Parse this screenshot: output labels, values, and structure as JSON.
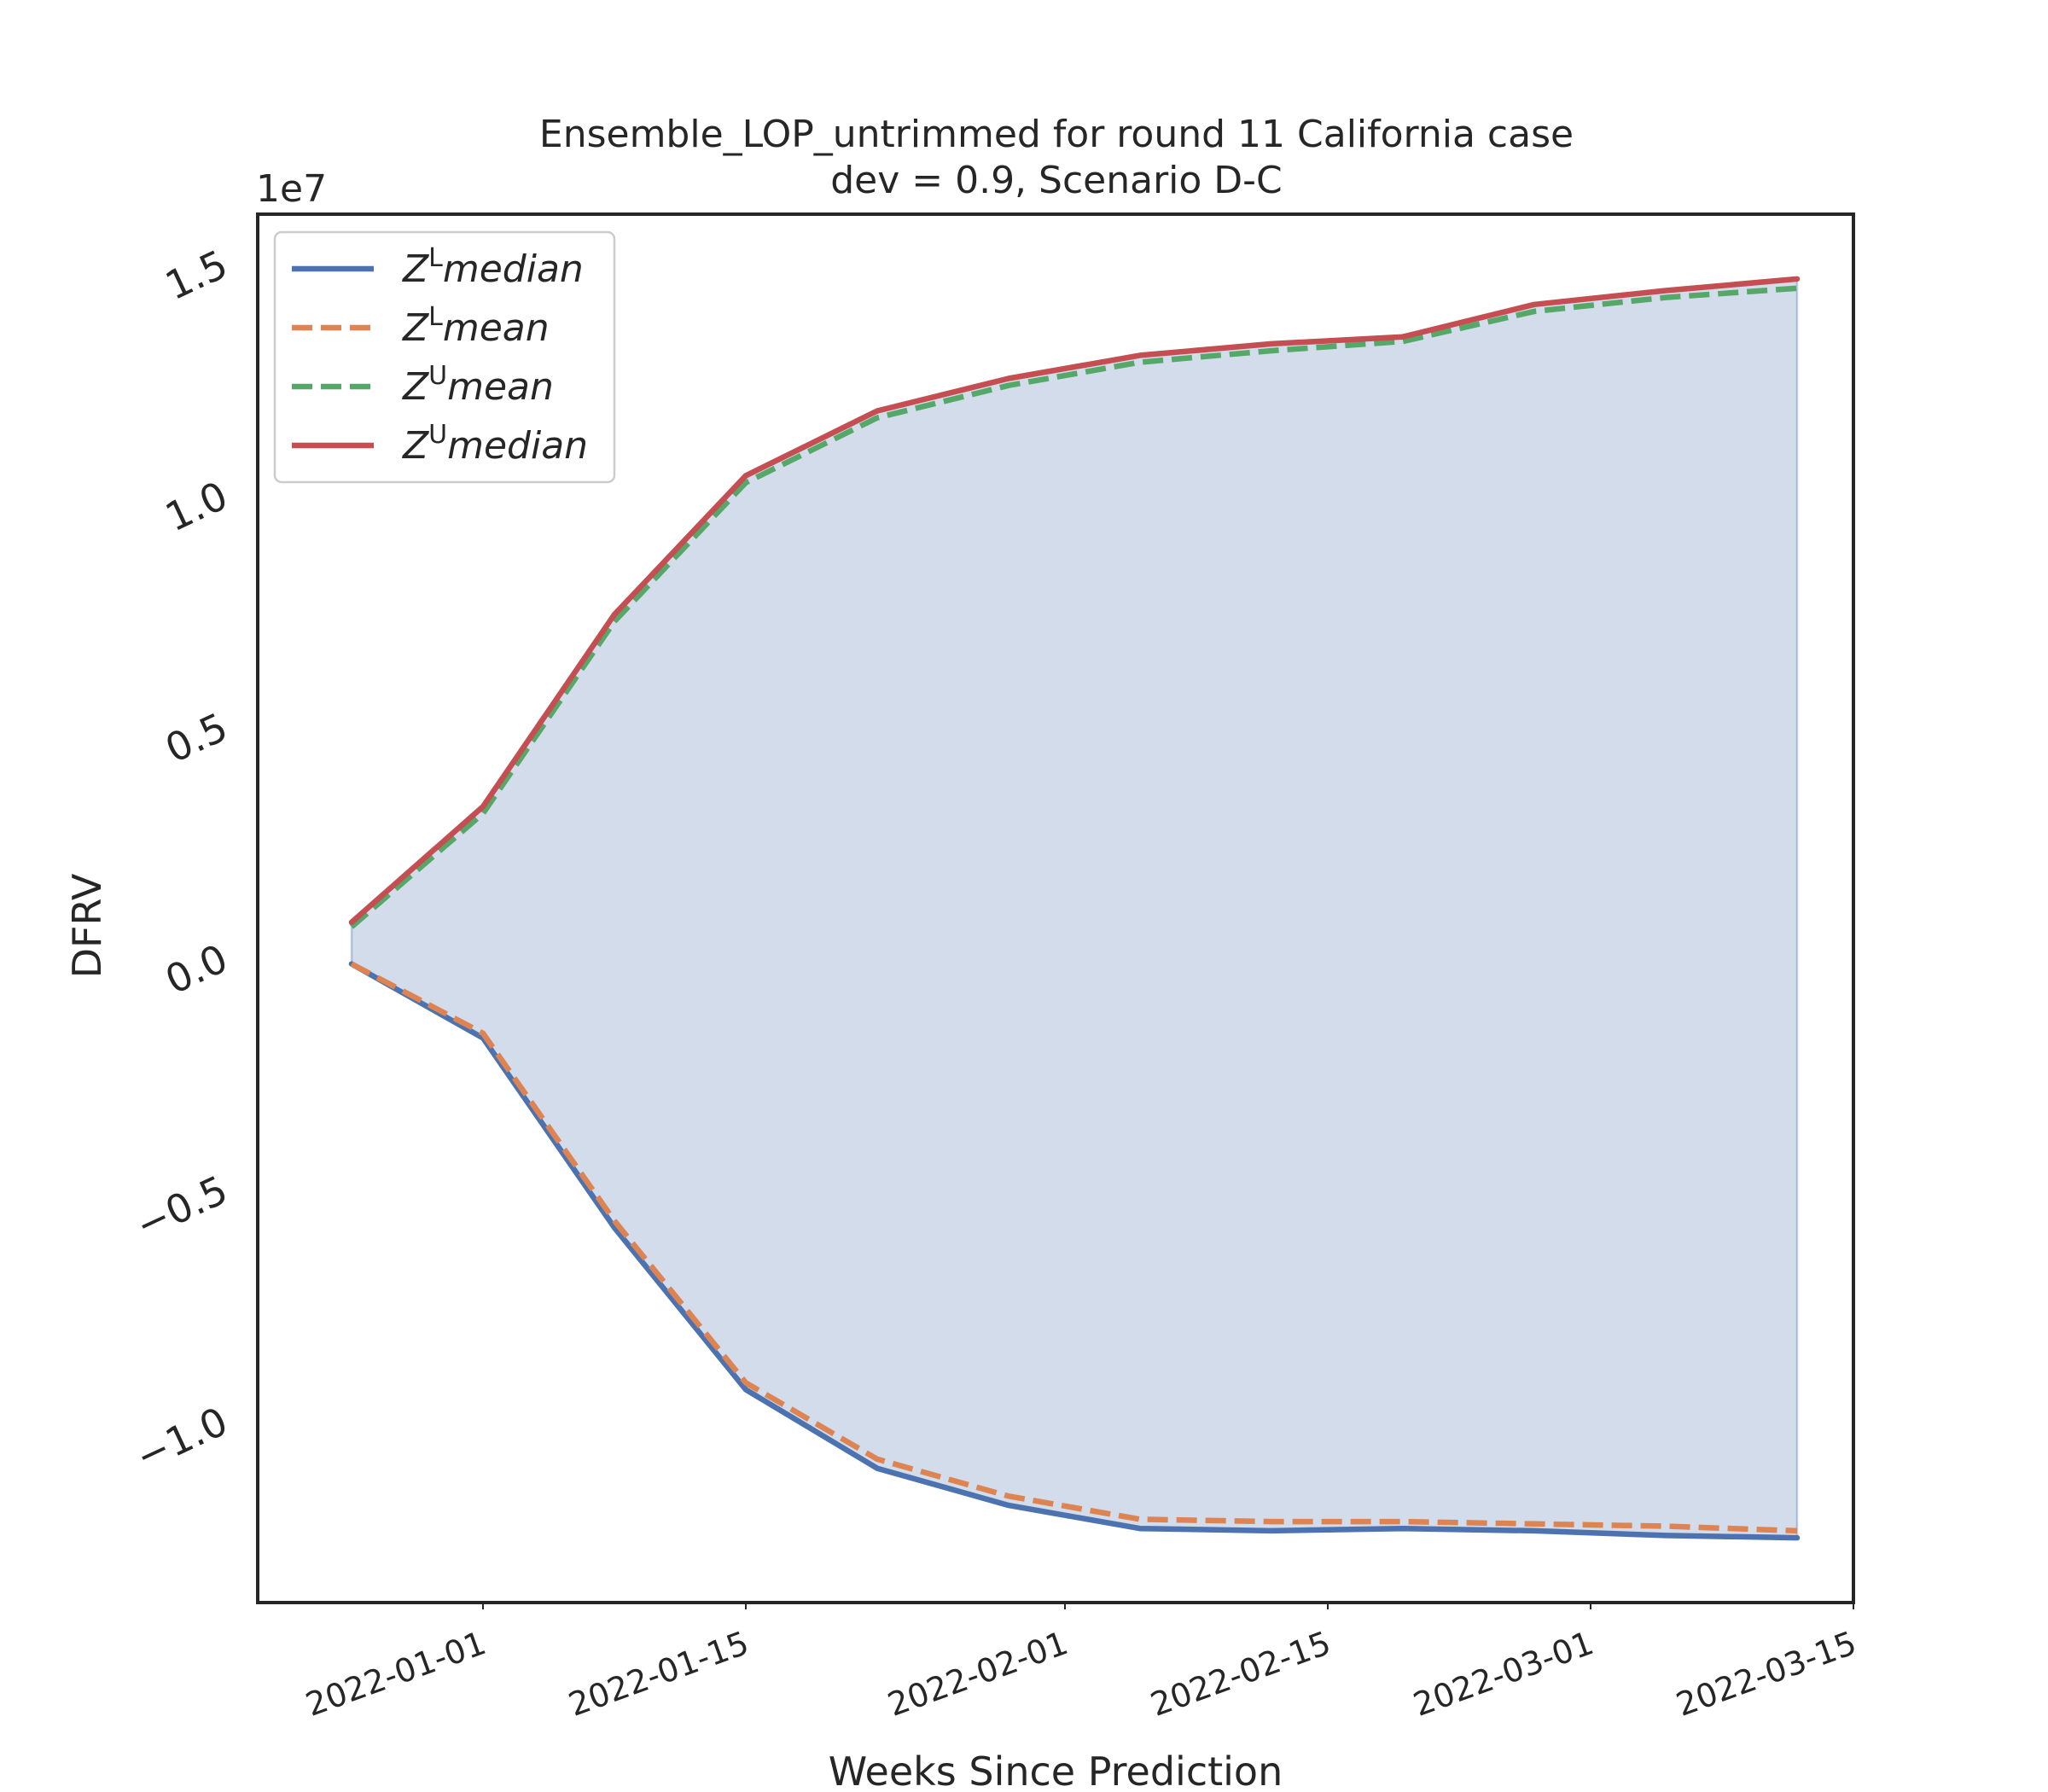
{
  "chart_data": {
    "type": "line",
    "title": "Ensemble_LOP_untrimmed for round 11 California case",
    "subtitle": "dev = 0.9, Scenario D-C",
    "xlabel": "Weeks Since Prediction",
    "ylabel": "DFRV",
    "y_offset_label": "1e7",
    "x_scale": "date",
    "x_ticks": [
      "2022-01-01",
      "2022-01-15",
      "2022-02-01",
      "2022-02-15",
      "2022-03-01",
      "2022-03-15"
    ],
    "x_tick_labels": [
      "2022-01-01",
      "2022-01-15",
      "2022-02-01",
      "2022-02-15",
      "2022-03-01",
      "2022-03-15"
    ],
    "xlim": [
      "2021-12-20",
      "2022-03-15"
    ],
    "y_ticks": [
      -1.0,
      -0.5,
      0.0,
      0.5,
      1.0,
      1.5
    ],
    "y_tick_labels": [
      "−1.0",
      "−0.5",
      "0.0",
      "0.5",
      "1.0",
      "1.5"
    ],
    "ylim": [
      -1.4,
      1.6
    ],
    "y_unit_scale": 10000000,
    "x": [
      "2021-12-25",
      "2022-01-01",
      "2022-01-08",
      "2022-01-15",
      "2022-01-22",
      "2022-01-29",
      "2022-02-05",
      "2022-02-12",
      "2022-02-19",
      "2022-02-26",
      "2022-03-05",
      "2022-03-12"
    ],
    "series": [
      {
        "name": "Z^L median",
        "legend_main": "Z",
        "legend_sup": "L",
        "legend_rest": "median",
        "color": "#4c72b0",
        "style": "solid",
        "values": [
          -0.02,
          -0.18,
          -0.59,
          -0.94,
          -1.11,
          -1.19,
          -1.24,
          -1.245,
          -1.24,
          -1.245,
          -1.255,
          -1.26
        ]
      },
      {
        "name": "Z^L mean",
        "legend_main": "Z",
        "legend_sup": "L",
        "legend_rest": "mean",
        "color": "#dd8452",
        "style": "dashed",
        "values": [
          -0.02,
          -0.17,
          -0.575,
          -0.925,
          -1.09,
          -1.17,
          -1.22,
          -1.225,
          -1.225,
          -1.23,
          -1.235,
          -1.245
        ]
      },
      {
        "name": "Z^U mean",
        "legend_main": "Z",
        "legend_sup": "U",
        "legend_rest": "mean",
        "color": "#55a868",
        "style": "dashed",
        "values": [
          0.06,
          0.305,
          0.72,
          1.02,
          1.16,
          1.23,
          1.28,
          1.305,
          1.325,
          1.39,
          1.42,
          1.44
        ]
      },
      {
        "name": "Z^U median",
        "legend_main": "Z",
        "legend_sup": "U",
        "legend_rest": "median",
        "color": "#c44e52",
        "style": "solid",
        "values": [
          0.07,
          0.32,
          0.735,
          1.035,
          1.175,
          1.245,
          1.295,
          1.32,
          1.335,
          1.405,
          1.435,
          1.46
        ]
      }
    ],
    "fill_between": {
      "lower": "Z^L median",
      "upper": "Z^U median",
      "color": "#4c72b0",
      "opacity": 0.25
    },
    "legend_position": "top-left",
    "grid": false
  }
}
